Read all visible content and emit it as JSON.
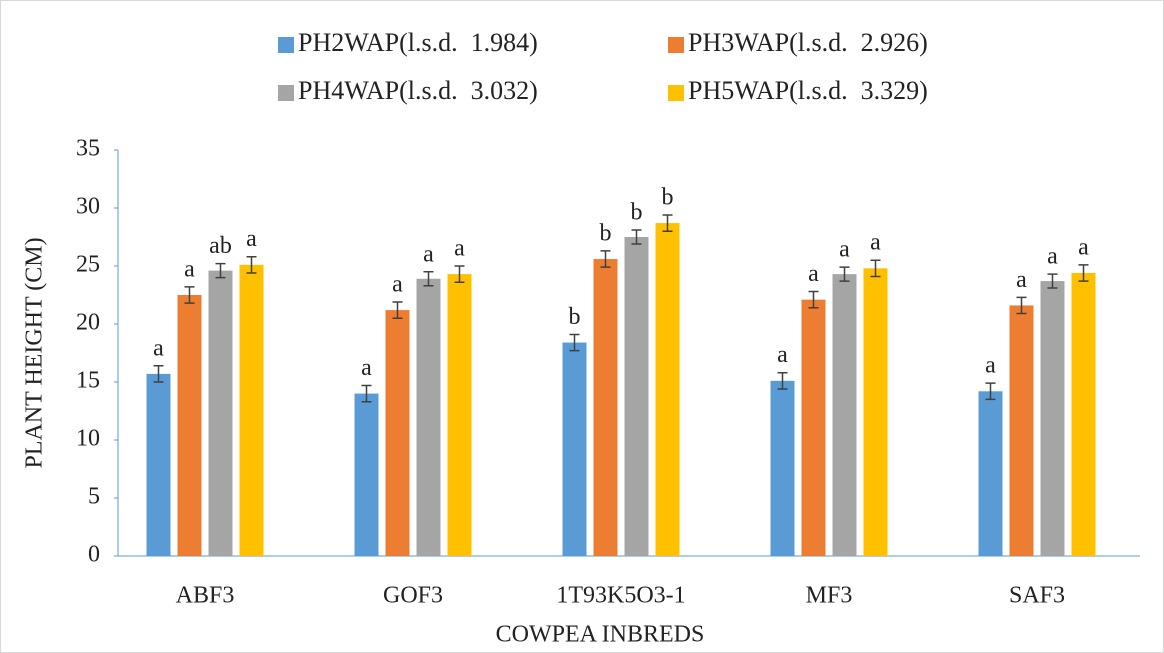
{
  "chart_data": {
    "type": "bar",
    "xlabel": "COWPEA INBREDS",
    "ylabel": "PLANT HEIGHT (CM)",
    "categories": [
      "ABF3",
      "GOF3",
      "1T93K5O3-1",
      "MF3",
      "SAF3"
    ],
    "series": [
      {
        "name": "PH2WAP(l.s.d.  1.984)",
        "color": "#5b9bd5",
        "values": [
          15.7,
          14.0,
          18.4,
          15.1,
          14.2
        ],
        "errors": [
          0.7,
          0.7,
          0.7,
          0.7,
          0.7
        ],
        "letters": [
          "a",
          "a",
          "b",
          "a",
          "a"
        ]
      },
      {
        "name": "PH3WAP(l.s.d.  2.926)",
        "color": "#ed7d31",
        "values": [
          22.5,
          21.2,
          25.6,
          22.1,
          21.6
        ],
        "errors": [
          0.7,
          0.7,
          0.7,
          0.7,
          0.7
        ],
        "letters": [
          "a",
          "a",
          "b",
          "a",
          "a"
        ]
      },
      {
        "name": "PH4WAP(l.s.d.  3.032)",
        "color": "#a5a5a5",
        "values": [
          24.6,
          23.9,
          27.5,
          24.3,
          23.7
        ],
        "errors": [
          0.6,
          0.6,
          0.6,
          0.6,
          0.6
        ],
        "letters": [
          "ab",
          "a",
          "b",
          "a",
          "a"
        ]
      },
      {
        "name": "PH5WAP(l.s.d.  3.329)",
        "color": "#ffc000",
        "values": [
          25.1,
          24.3,
          28.7,
          24.8,
          24.4
        ],
        "errors": [
          0.7,
          0.7,
          0.7,
          0.7,
          0.7
        ],
        "letters": [
          "a",
          "a",
          "b",
          "a",
          "a"
        ]
      }
    ],
    "ylim": [
      0,
      35
    ],
    "yticks": [
      0,
      5,
      10,
      15,
      20,
      25,
      30,
      35
    ],
    "legend": "top"
  }
}
